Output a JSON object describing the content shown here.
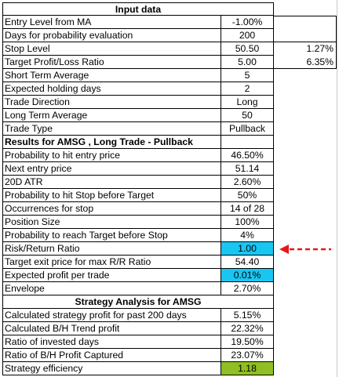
{
  "input_header": "Input data",
  "input_rows": [
    {
      "label": "Entry Level from MA",
      "value": "-1.00%",
      "extra": ""
    },
    {
      "label": "Days for probability evaluation",
      "value": "200",
      "extra": ""
    },
    {
      "label": "Stop Level",
      "value": "50.50",
      "extra": "1.27%"
    },
    {
      "label": "Target Profit/Loss Ratio",
      "value": "5.00",
      "extra": "6.35%"
    },
    {
      "label": "Short Term Average",
      "value": "5",
      "extra": ""
    },
    {
      "label": "Expected holding days",
      "value": "2",
      "extra": ""
    },
    {
      "label": "Trade Direction",
      "value": "Long",
      "extra": ""
    },
    {
      "label": "Long Term Average",
      "value": "50",
      "extra": ""
    },
    {
      "label": "Trade Type",
      "value": "Pullback",
      "extra": ""
    }
  ],
  "results_header": "Results for AMSG , Long Trade - Pullback",
  "results_rows": [
    {
      "label": "Probability to hit entry price",
      "value": "46.50%"
    },
    {
      "label": "Next entry price",
      "value": "51.14"
    },
    {
      "label": "20D ATR",
      "value": "2.60%"
    },
    {
      "label": "Probability to hit Stop before Target",
      "value": "50%"
    },
    {
      "label": "Occurrences for stop",
      "value": "14 of 28"
    },
    {
      "label": "Position Size",
      "value": "100%"
    },
    {
      "label": "Probability to reach Target before Stop",
      "value": "4%"
    },
    {
      "label": "Risk/Return Ratio",
      "value": "1.00"
    },
    {
      "label": "Target exit price for max R/R Ratio",
      "value": "54.40"
    },
    {
      "label": "Expected profit per trade",
      "value": "0.01%"
    },
    {
      "label": "Envelope",
      "value": "2.70%"
    }
  ],
  "strategy_header": "Strategy Analysis for AMSG",
  "strategy_rows": [
    {
      "label": "Calculated strategy profit for past 200 days",
      "value": "5.15%"
    },
    {
      "label": "Calculated B/H Trend profit",
      "value": "22.32%"
    },
    {
      "label": "Ratio of invested days",
      "value": "19.50%"
    },
    {
      "label": "Ratio of B/H Profit Captured",
      "value": "23.07%"
    },
    {
      "label": "Strategy efficiency",
      "value": "1.18"
    }
  ],
  "colors": {
    "highlight_blue": "#19c6f2",
    "highlight_green": "#8fbf22",
    "arrow_red": "#e8161c"
  },
  "icons": {
    "arrow": "red-dashed-left-arrow-icon"
  }
}
